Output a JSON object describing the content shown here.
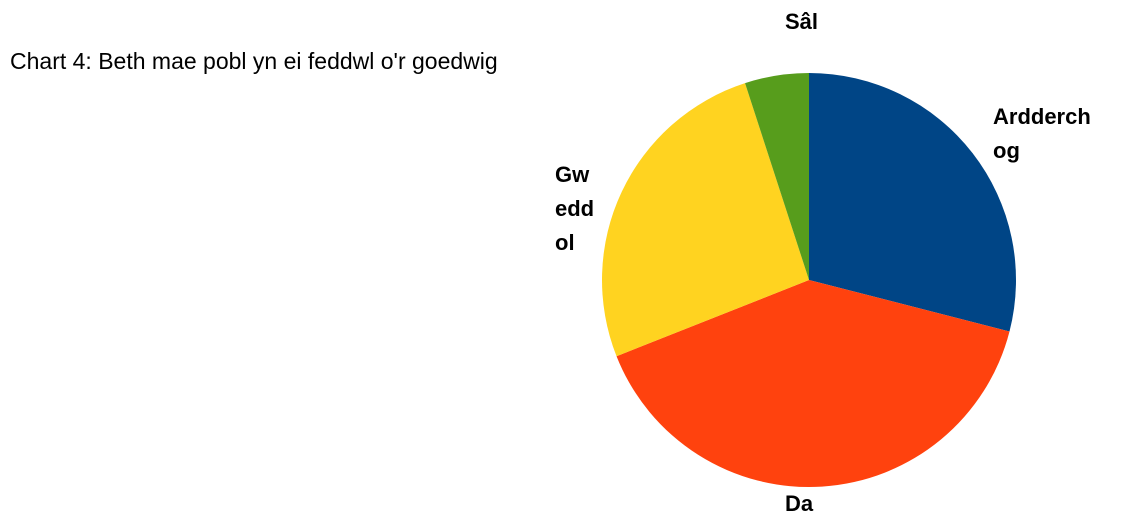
{
  "chart_data": {
    "type": "pie",
    "title": "Chart 4: Beth mae pobl yn ei feddwl o'r goedwig",
    "categories": [
      "Ardderchog",
      "Da",
      "Gweddol",
      "Sâl"
    ],
    "values": [
      29,
      40,
      26,
      5
    ],
    "colors": [
      "#004586",
      "#ff420e",
      "#ffd320",
      "#579d1c"
    ]
  }
}
